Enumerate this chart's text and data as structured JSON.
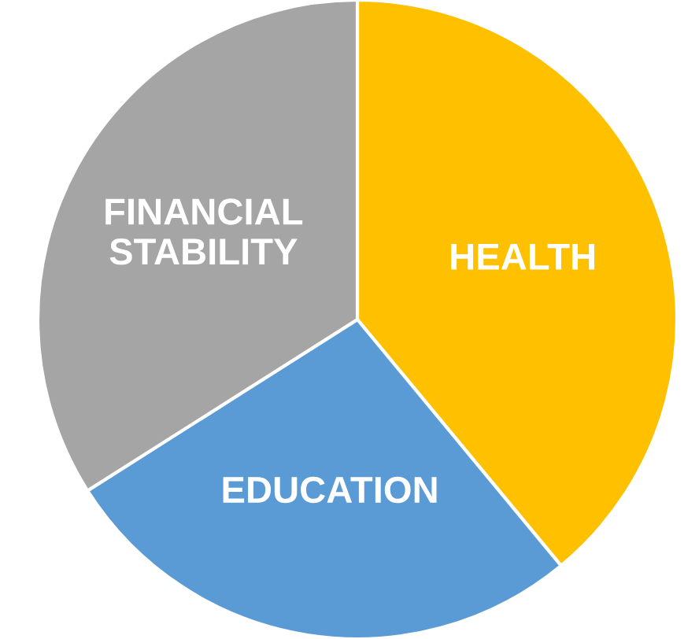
{
  "chart_data": {
    "type": "pie",
    "categories": [
      "HEALTH",
      "EDUCATION",
      "FINANCIAL\nSTABILITY"
    ],
    "values": [
      39,
      27,
      34
    ],
    "colors": [
      "#ffc000",
      "#5b9bd5",
      "#a5a5a5"
    ]
  }
}
